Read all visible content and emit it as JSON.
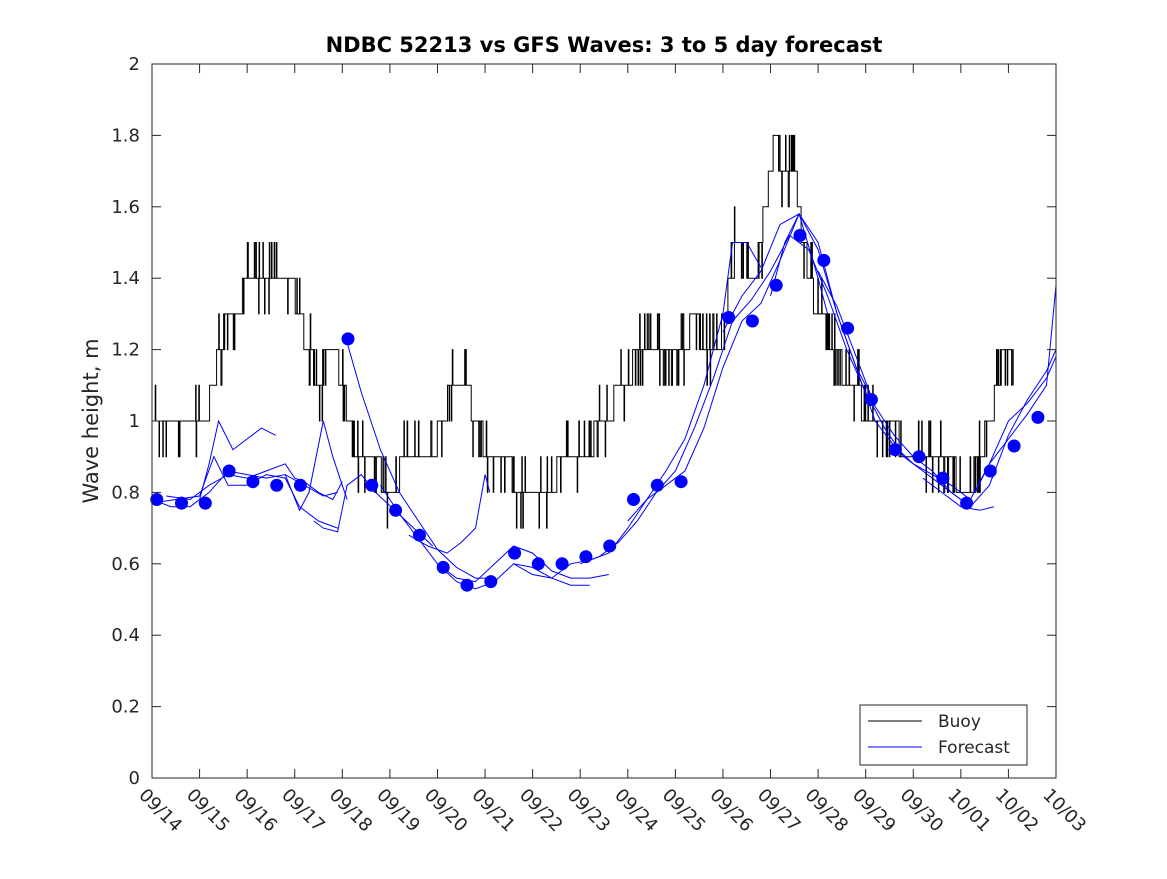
{
  "chart_data": {
    "type": "line",
    "title": "NDBC 52213 vs GFS Waves: 3 to 5 day forecast",
    "xlabel": "",
    "ylabel": "Wave height, m",
    "xlim": [
      0,
      19
    ],
    "ylim": [
      0,
      2
    ],
    "yticks": [
      0,
      0.2,
      0.4,
      0.6,
      0.8,
      1,
      1.2,
      1.4,
      1.6,
      1.8,
      2
    ],
    "ytick_labels": [
      "0",
      "0.2",
      "0.4",
      "0.6",
      "0.8",
      "1",
      "1.2",
      "1.4",
      "1.6",
      "1.8",
      "2"
    ],
    "xticks": [
      0,
      1,
      2,
      3,
      4,
      5,
      6,
      7,
      8,
      9,
      10,
      11,
      12,
      13,
      14,
      15,
      16,
      17,
      18,
      19
    ],
    "xtick_labels": [
      "09/14",
      "09/15",
      "09/16",
      "09/17",
      "09/18",
      "09/19",
      "09/20",
      "09/21",
      "09/22",
      "09/23",
      "09/24",
      "09/25",
      "09/26",
      "09/27",
      "09/28",
      "09/29",
      "09/30",
      "10/01",
      "10/02",
      "10/03"
    ],
    "x_units": "days since 09/14",
    "legend": {
      "position": "bottom-right",
      "entries": [
        {
          "label": "Buoy",
          "color": "#000000"
        },
        {
          "label": "Forecast",
          "color": "#0000ff"
        }
      ]
    },
    "colors": {
      "buoy": "#000000",
      "forecast": "#0000ff",
      "axes": "#262626"
    },
    "buoy_anchors": {
      "x": [
        0,
        0.15,
        0.3,
        0.5,
        0.8,
        1.0,
        1.2,
        1.35,
        1.5,
        1.7,
        1.9,
        2.1,
        2.3,
        2.5,
        2.7,
        2.9,
        3.1,
        3.3,
        3.5,
        3.7,
        3.85,
        4.0,
        4.2,
        4.4,
        4.6,
        4.8,
        5.0,
        5.2,
        5.4,
        5.6,
        5.8,
        6.0,
        6.2,
        6.4,
        6.6,
        6.8,
        6.95,
        7.1,
        7.3,
        7.5,
        7.7,
        7.9,
        8.1,
        8.3,
        8.5,
        8.7,
        8.9,
        9.1,
        9.3,
        9.5,
        9.7,
        9.9,
        10.1,
        10.3,
        10.5,
        10.7,
        10.9,
        11.1,
        11.3,
        11.5,
        11.7,
        11.9,
        12.1,
        12.3,
        12.5,
        12.7,
        12.85,
        13.0,
        13.1,
        13.2,
        13.35,
        13.5,
        13.7,
        13.9,
        14.1,
        14.3,
        14.5,
        14.7,
        14.9,
        15.1,
        15.3,
        15.5,
        15.7,
        15.9,
        16.1,
        16.3,
        16.5,
        16.7,
        16.9,
        17.1,
        17.3,
        17.5,
        17.7,
        17.85,
        18.0,
        18.1
      ],
      "y": [
        1.0,
        1.0,
        0.95,
        1.0,
        0.95,
        1.0,
        1.05,
        1.15,
        1.25,
        1.3,
        1.35,
        1.4,
        1.4,
        1.45,
        1.45,
        1.4,
        1.3,
        1.2,
        1.1,
        1.2,
        1.2,
        1.1,
        0.95,
        0.9,
        0.85,
        0.85,
        0.8,
        0.85,
        0.9,
        0.9,
        0.9,
        0.95,
        1.05,
        1.15,
        1.1,
        1.0,
        0.95,
        0.9,
        0.9,
        0.9,
        0.8,
        0.75,
        0.75,
        0.8,
        0.85,
        0.9,
        0.9,
        0.95,
        0.95,
        1.0,
        1.05,
        1.1,
        1.15,
        1.2,
        1.25,
        1.2,
        1.15,
        1.2,
        1.25,
        1.25,
        1.2,
        1.2,
        1.35,
        1.5,
        1.45,
        1.4,
        1.55,
        1.7,
        1.8,
        1.75,
        1.7,
        1.7,
        1.5,
        1.35,
        1.3,
        1.2,
        1.15,
        1.1,
        1.05,
        1.0,
        1.0,
        0.98,
        0.95,
        0.92,
        0.92,
        0.92,
        0.9,
        0.85,
        0.85,
        0.82,
        0.85,
        0.95,
        1.05,
        1.15,
        1.2,
        1.15
      ],
      "noise_amplitude": 0.1,
      "step": 0.1
    },
    "forecast_dots": {
      "x": [
        0.1,
        0.62,
        1.12,
        1.62,
        2.12,
        2.62,
        3.12,
        4.12,
        4.62,
        5.12,
        5.62,
        6.12,
        6.62,
        7.12,
        7.62,
        8.12,
        8.62,
        9.12,
        9.62,
        10.12,
        10.62,
        11.12,
        12.12,
        12.62,
        13.12,
        13.62,
        14.12,
        14.62,
        15.12,
        15.62,
        16.12,
        16.62,
        17.12,
        17.62,
        18.12,
        18.62
      ],
      "y": [
        0.78,
        0.77,
        0.77,
        0.86,
        0.83,
        0.82,
        0.82,
        1.23,
        0.82,
        0.75,
        0.68,
        0.59,
        0.54,
        0.55,
        0.63,
        0.6,
        0.6,
        0.62,
        0.65,
        0.78,
        0.82,
        0.83,
        1.29,
        1.28,
        1.38,
        1.52,
        1.45,
        1.26,
        1.06,
        0.92,
        0.9,
        0.84,
        0.77,
        0.86,
        0.93,
        1.01
      ]
    },
    "forecast_traces": [
      {
        "x": [
          0.0,
          0.4,
          0.8,
          1.2,
          1.6,
          2.0,
          2.4,
          2.8,
          3.2,
          3.6,
          3.9
        ],
        "y": [
          0.78,
          0.76,
          0.76,
          0.8,
          0.86,
          0.85,
          0.84,
          0.85,
          0.82,
          0.79,
          0.8
        ]
      },
      {
        "x": [
          0.0,
          0.5,
          1.0,
          1.3,
          1.6,
          2.0,
          2.4,
          2.8,
          3.1,
          3.5,
          3.9
        ],
        "y": [
          0.77,
          0.78,
          0.79,
          0.9,
          0.82,
          0.82,
          0.85,
          0.84,
          0.76,
          0.72,
          0.7
        ]
      },
      {
        "x": [
          1.0,
          1.2,
          1.4,
          1.7,
          2.0,
          2.3,
          2.6
        ],
        "y": [
          0.78,
          0.88,
          1.0,
          0.92,
          0.95,
          0.98,
          0.96
        ]
      },
      {
        "x": [
          0.3,
          0.8,
          1.2,
          1.6,
          2.0,
          2.4,
          2.8,
          3.0,
          3.2,
          3.5,
          3.8,
          4.0
        ],
        "y": [
          0.79,
          0.78,
          0.82,
          0.85,
          0.84,
          0.86,
          0.88,
          0.84,
          0.83,
          0.8,
          0.78,
          0.83
        ]
      },
      {
        "x": [
          2.8,
          3.1,
          3.3,
          3.6,
          3.8,
          4.0,
          4.1
        ],
        "y": [
          0.85,
          0.75,
          0.8,
          1.0,
          0.9,
          0.82,
          0.78
        ]
      },
      {
        "x": [
          3.4,
          3.6,
          3.9,
          4.1,
          4.4,
          4.7,
          5.1,
          5.5,
          5.9
        ],
        "y": [
          0.72,
          0.7,
          0.69,
          0.82,
          0.85,
          0.8,
          0.75,
          0.7,
          0.65
        ]
      },
      {
        "x": [
          4.1,
          4.4,
          4.8,
          5.2,
          5.6,
          6.0,
          6.4,
          6.8,
          7.2
        ],
        "y": [
          1.22,
          1.08,
          0.92,
          0.8,
          0.72,
          0.64,
          0.59,
          0.56,
          0.56
        ]
      },
      {
        "x": [
          4.8,
          5.2,
          5.6,
          6.0,
          6.4,
          6.8,
          7.2,
          7.6,
          8.0,
          8.4,
          8.8,
          9.2,
          9.6
        ],
        "y": [
          0.82,
          0.74,
          0.67,
          0.6,
          0.56,
          0.55,
          0.6,
          0.65,
          0.63,
          0.58,
          0.56,
          0.56,
          0.57
        ]
      },
      {
        "x": [
          5.4,
          5.8,
          6.2,
          6.5,
          6.8,
          7.0,
          7.1
        ],
        "y": [
          0.68,
          0.65,
          0.63,
          0.66,
          0.7,
          0.85,
          0.8
        ]
      },
      {
        "x": [
          6.0,
          6.4,
          6.8,
          7.2,
          7.6,
          8.0,
          8.4,
          8.8,
          9.2
        ],
        "y": [
          0.6,
          0.55,
          0.53,
          0.55,
          0.6,
          0.59,
          0.56,
          0.54,
          0.54
        ]
      },
      {
        "x": [
          7.6,
          8.0,
          8.4,
          8.8,
          9.2,
          9.6,
          10.0,
          10.4,
          10.8,
          11.2,
          11.6,
          12.0,
          12.4,
          12.8,
          13.2,
          13.6,
          14.0,
          14.4,
          14.8,
          15.2
        ],
        "y": [
          0.6,
          0.57,
          0.56,
          0.6,
          0.61,
          0.63,
          0.7,
          0.78,
          0.82,
          0.86,
          0.98,
          1.15,
          1.28,
          1.33,
          1.45,
          1.58,
          1.5,
          1.3,
          1.15,
          1.05
        ]
      },
      {
        "x": [
          9.0,
          9.4,
          9.8,
          10.2,
          10.6,
          11.0,
          11.4,
          11.8,
          12.2,
          12.6,
          13.0,
          13.4,
          13.8,
          14.2,
          14.6,
          15.0,
          15.4,
          15.8,
          16.2,
          16.6,
          17.0
        ],
        "y": [
          0.6,
          0.62,
          0.66,
          0.72,
          0.8,
          0.86,
          0.98,
          1.12,
          1.28,
          1.34,
          1.42,
          1.52,
          1.48,
          1.35,
          1.2,
          1.08,
          0.98,
          0.9,
          0.86,
          0.82,
          0.78
        ]
      },
      {
        "x": [
          10.0,
          10.4,
          10.8,
          11.2,
          11.6,
          12.0,
          12.2,
          12.5,
          12.8
        ],
        "y": [
          0.72,
          0.78,
          0.86,
          0.95,
          1.1,
          1.3,
          1.5,
          1.5,
          1.43
        ]
      },
      {
        "x": [
          12.0,
          12.4,
          12.8,
          13.2,
          13.6,
          14.0,
          14.2
        ],
        "y": [
          1.25,
          1.35,
          1.42,
          1.55,
          1.58,
          1.4,
          1.3
        ]
      },
      {
        "x": [
          13.0,
          13.3,
          13.6,
          14.0,
          14.4,
          14.8,
          15.2,
          15.6,
          16.0,
          16.4,
          16.8,
          17.2,
          17.6,
          18.0,
          18.4,
          18.8,
          19.0
        ],
        "y": [
          1.35,
          1.5,
          1.58,
          1.48,
          1.3,
          1.15,
          1.0,
          0.93,
          0.88,
          0.85,
          0.82,
          0.78,
          0.88,
          0.95,
          1.02,
          1.1,
          1.38
        ]
      },
      {
        "x": [
          14.0,
          14.4,
          14.8,
          15.2,
          15.6,
          16.0,
          16.4,
          16.8,
          17.2,
          17.6,
          18.0,
          18.4,
          18.8,
          19.0
        ],
        "y": [
          1.42,
          1.32,
          1.18,
          1.04,
          0.96,
          0.9,
          0.86,
          0.8,
          0.76,
          0.82,
          0.96,
          1.06,
          1.14,
          1.2
        ]
      },
      {
        "x": [
          16.2,
          16.6,
          17.0,
          17.4,
          17.7
        ],
        "y": [
          0.84,
          0.8,
          0.76,
          0.75,
          0.76
        ]
      },
      {
        "x": [
          17.3,
          17.6,
          18.0,
          18.4,
          18.8,
          19.0
        ],
        "y": [
          0.8,
          0.88,
          1.0,
          1.05,
          1.12,
          1.18
        ]
      }
    ]
  }
}
